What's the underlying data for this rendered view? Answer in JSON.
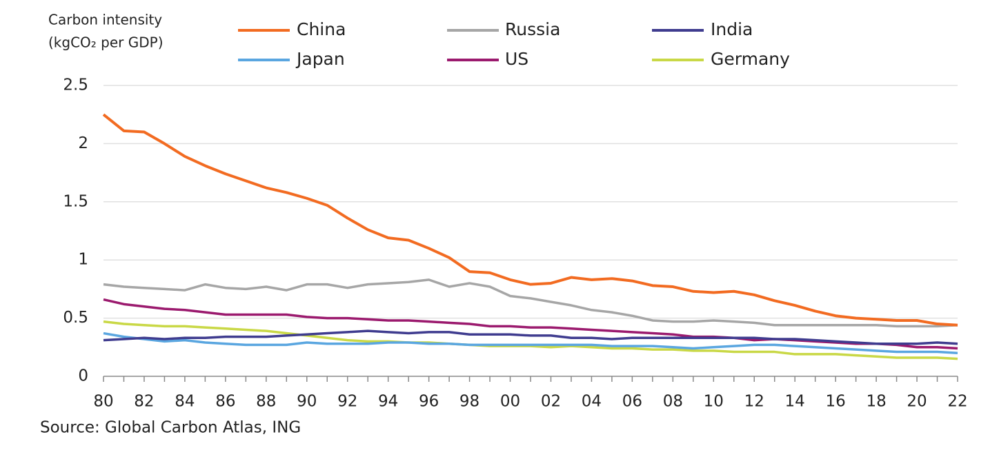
{
  "chart_data": {
    "type": "line",
    "title": [
      "Carbon intensity",
      "(kgCO₂ per GDP)"
    ],
    "source": "Source: Global Carbon Atlas, ING",
    "categories": [
      "80",
      null,
      "82",
      null,
      "84",
      null,
      "86",
      null,
      "88",
      null,
      "90",
      null,
      "92",
      null,
      "94",
      null,
      "96",
      null,
      "98",
      null,
      "00",
      null,
      "02",
      null,
      "04",
      null,
      "06",
      null,
      "08",
      null,
      "10",
      null,
      "12",
      null,
      "14",
      null,
      "16",
      null,
      "18",
      null,
      "20",
      null,
      "22"
    ],
    "ylim": [
      0,
      2.5
    ],
    "yticks": [
      0,
      0.5,
      1,
      1.5,
      2,
      2.5
    ],
    "grid": true,
    "series": [
      {
        "name": "China",
        "color": "#f26b21",
        "values": [
          2.25,
          2.11,
          2.1,
          2.0,
          1.89,
          1.81,
          1.74,
          1.68,
          1.62,
          1.58,
          1.53,
          1.47,
          1.36,
          1.26,
          1.19,
          1.17,
          1.1,
          1.02,
          0.9,
          0.89,
          0.83,
          0.79,
          0.8,
          0.85,
          0.83,
          0.84,
          0.82,
          0.78,
          0.77,
          0.73,
          0.72,
          0.73,
          0.7,
          0.65,
          0.61,
          0.56,
          0.52,
          0.5,
          0.49,
          0.48,
          0.48,
          0.45,
          0.44
        ]
      },
      {
        "name": "Russia",
        "color": "#a6a6a6",
        "values": [
          0.79,
          0.77,
          0.76,
          0.75,
          0.74,
          0.79,
          0.76,
          0.75,
          0.77,
          0.74,
          0.79,
          0.79,
          0.76,
          0.79,
          0.8,
          0.81,
          0.83,
          0.77,
          0.8,
          0.77,
          0.69,
          0.67,
          0.64,
          0.61,
          0.57,
          0.55,
          0.52,
          0.48,
          0.47,
          0.47,
          0.48,
          0.47,
          0.46,
          0.44,
          0.44,
          0.44,
          0.44,
          0.44,
          0.44,
          0.43,
          0.43,
          0.43,
          0.44
        ]
      },
      {
        "name": "India",
        "color": "#3f3c8f",
        "values": [
          0.31,
          0.32,
          0.33,
          0.32,
          0.33,
          0.33,
          0.34,
          0.34,
          0.34,
          0.35,
          0.36,
          0.37,
          0.38,
          0.39,
          0.38,
          0.37,
          0.38,
          0.38,
          0.36,
          0.36,
          0.36,
          0.35,
          0.35,
          0.33,
          0.33,
          0.32,
          0.33,
          0.33,
          0.33,
          0.33,
          0.33,
          0.33,
          0.33,
          0.32,
          0.32,
          0.31,
          0.3,
          0.29,
          0.28,
          0.28,
          0.28,
          0.29,
          0.28
        ]
      },
      {
        "name": "Japan",
        "color": "#5aa6e0",
        "values": [
          0.37,
          0.34,
          0.32,
          0.3,
          0.31,
          0.29,
          0.28,
          0.27,
          0.27,
          0.27,
          0.29,
          0.28,
          0.28,
          0.28,
          0.29,
          0.29,
          0.28,
          0.28,
          0.27,
          0.27,
          0.27,
          0.27,
          0.27,
          0.27,
          0.27,
          0.26,
          0.26,
          0.26,
          0.25,
          0.24,
          0.25,
          0.26,
          0.27,
          0.27,
          0.26,
          0.25,
          0.24,
          0.23,
          0.22,
          0.21,
          0.21,
          0.21,
          0.2
        ]
      },
      {
        "name": "US",
        "color": "#9b1a6e",
        "values": [
          0.66,
          0.62,
          0.6,
          0.58,
          0.57,
          0.55,
          0.53,
          0.53,
          0.53,
          0.53,
          0.51,
          0.5,
          0.5,
          0.49,
          0.48,
          0.48,
          0.47,
          0.46,
          0.45,
          0.43,
          0.43,
          0.42,
          0.42,
          0.41,
          0.4,
          0.39,
          0.38,
          0.37,
          0.36,
          0.34,
          0.34,
          0.33,
          0.31,
          0.32,
          0.31,
          0.3,
          0.29,
          0.28,
          0.28,
          0.27,
          0.25,
          0.25,
          0.24
        ]
      },
      {
        "name": "Germany",
        "color": "#c9d846",
        "values": [
          0.47,
          0.45,
          0.44,
          0.43,
          0.43,
          0.42,
          0.41,
          0.4,
          0.39,
          0.37,
          0.35,
          0.33,
          0.31,
          0.3,
          0.3,
          0.29,
          0.29,
          0.28,
          0.27,
          0.26,
          0.26,
          0.26,
          0.25,
          0.26,
          0.25,
          0.24,
          0.24,
          0.23,
          0.23,
          0.22,
          0.22,
          0.21,
          0.21,
          0.21,
          0.19,
          0.19,
          0.19,
          0.18,
          0.17,
          0.16,
          0.16,
          0.16,
          0.15
        ]
      }
    ]
  }
}
